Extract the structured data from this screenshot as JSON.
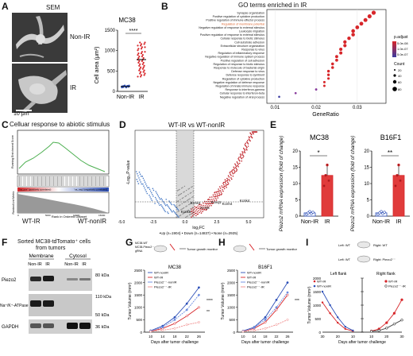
{
  "panels": {
    "A": "A",
    "B": "B",
    "C": "C",
    "D": "D",
    "E": "E",
    "F": "F",
    "G": "G",
    "H": "H",
    "I": "I"
  },
  "panelA": {
    "sem_title": "SEM",
    "label_nonir": "Non-IR",
    "label_ir": "IR",
    "scale_bar": "10 μm",
    "chart_data": {
      "type": "scatter",
      "title": "MC38",
      "ylabel": "Cell area (μm²)",
      "categories": [
        "Non-IR",
        "IR"
      ],
      "yticks": [
        "0",
        "500",
        "1000",
        "1500"
      ],
      "ylim": [
        0,
        1500
      ],
      "series": [
        {
          "values": [
            120,
            780
          ]
        }
      ],
      "significance": "****"
    }
  },
  "panelB": {
    "title": "GO terms enriched in IR",
    "xlabel": "GeneRatio",
    "xticks": [
      "0.01",
      "0.02",
      "0.03"
    ],
    "highlight_color": "#d9622b",
    "chart_data": {
      "type": "scatter",
      "terms": [
        "Synapse organization",
        "Positive regulation of cytokine production",
        "Positive regulation of immune effector process",
        "Regulation of membrane potential",
        "Negative regulation of response to external stimulus",
        "Leukocyte migration",
        "Positive regulation of response to external stimulus",
        "Cellular response to biotic stimulus",
        "Cell-substrate adhesion",
        "Extracellular structure organization",
        "Response to virus",
        "Regulation of inflammatory response",
        "Negative regulation of immune system process",
        "Positive regulation of cell adhesion",
        "Regulation of response to biotic stimulus",
        "Response to molecule of bacterial origin",
        "Defense response to virus",
        "Defense response to symbiont",
        "Regulation of cytokine production",
        "Negative regulation of defense response",
        "Regulation of innate immune response",
        "Response to interferon-gamma",
        "Cellular response to interferon-beta",
        "Negative regulation of viral process"
      ],
      "x": [
        0.034,
        0.033,
        0.032,
        0.031,
        0.03,
        0.029,
        0.029,
        0.028,
        0.027,
        0.027,
        0.026,
        0.026,
        0.025,
        0.025,
        0.024,
        0.024,
        0.023,
        0.023,
        0.023,
        0.022,
        0.022,
        0.02,
        0.015,
        0.011
      ],
      "xlim": [
        0.008,
        0.037
      ],
      "legend_padj_title": "p.adjust",
      "legend_padj": [
        "5.0e-08",
        "1.0e-07",
        "5.0e-07"
      ],
      "legend_count_title": "Count",
      "legend_count": [
        "20",
        "40",
        "60",
        "80"
      ]
    }
  },
  "panelC": {
    "title": "Celluar response to abiotic stimulus",
    "label_left": "WT-IR",
    "label_right": "WT-nonIR",
    "ylabel_top": "Running Enrichment Score",
    "ylabel_bottom": "Ranked List Metric",
    "xlabel": "Rank in Ordered Dataset",
    "pos_tag": "'na_pos' (positively correlated)",
    "neg_tag": "'na_neg' (negatively correlated)",
    "ticks": [
      "0",
      "5000",
      "10000",
      "15000"
    ]
  },
  "panelD": {
    "title": "WT-IR vs WT-nonIR",
    "ylabel": "-Log₁₀P-value",
    "xlabel": "log₂FC",
    "xticks": [
      "-5.0",
      "-2.5",
      "0.0",
      "2.5",
      "5.0"
    ],
    "genes": [
      "Kcnk2",
      "Kcnj8",
      "Kcnk6",
      "Kcnq1",
      "Kcnh4",
      "Kcnk4"
    ],
    "legend": "•Up (n=1904) • Down (n=14837) • None (n=2925)"
  },
  "panelE": {
    "chart_data": [
      {
        "type": "bar",
        "title": "MC38",
        "ylabel": "Piezo2 mRNA expression (fold of change)",
        "categories": [
          "Non-IR",
          "IR"
        ],
        "values": [
          1.0,
          12.5
        ],
        "yticks": [
          "0",
          "5",
          "10",
          "15",
          "20"
        ],
        "ylim": [
          0,
          20
        ],
        "significance": "*"
      },
      {
        "type": "bar",
        "title": "B16F1",
        "ylabel": "Piezo2 mRNA expression (fold of change)",
        "categories": [
          "Non-IR",
          "IR"
        ],
        "values": [
          1.0,
          12.5
        ],
        "yticks": [
          "0",
          "5",
          "10",
          "15",
          "20"
        ],
        "ylim": [
          0,
          20
        ],
        "significance": "**"
      }
    ]
  },
  "panelF": {
    "title_line1": "Sorted MC38-tdTomato⁺ cells",
    "title_line2": "from tumors",
    "membrane": "Membrane",
    "cytosol": "Cytosol",
    "lanes": [
      "Non-IR",
      "IR",
      "Non-IR",
      "IR"
    ],
    "rows": [
      "Piezo2",
      "Na⁺/K⁺-ATPase",
      "GAPDH"
    ],
    "markers": [
      "80 kDa",
      "110 kDa",
      "50 kDa",
      "36 kDa"
    ]
  },
  "panelG": {
    "title": "MC38",
    "monitor": "Tumor growth monitor",
    "schematic_lines": [
      "MC38-WT",
      "MC38-Piezo2⁻⁻",
      "gRNA"
    ],
    "ylabel": "Tumor Volume (mm³)",
    "xlabel": "Days after tumor challenge",
    "chart_data": {
      "type": "line",
      "x": [
        10,
        14,
        18,
        22,
        26
      ],
      "xticks": [
        "10",
        "14",
        "18",
        "22",
        "26"
      ],
      "yticks": [
        "0",
        "500",
        "1000",
        "1500",
        "2000",
        "2500"
      ],
      "ylim": [
        0,
        2500
      ],
      "series": [
        {
          "name": "WT-nonIR",
          "color": "#2c4fb8",
          "values": [
            60,
            250,
            600,
            1150,
            1800
          ]
        },
        {
          "name": "WT-IR",
          "color": "#d7262a",
          "values": [
            40,
            150,
            350,
            650,
            1000
          ]
        },
        {
          "name": "Piezo2⁻⁻-nonIR",
          "color": "#6b8be0",
          "values": [
            50,
            200,
            500,
            900,
            1500
          ]
        },
        {
          "name": "Piezo2⁻⁻-IR",
          "color": "#f08a8a",
          "values": [
            30,
            80,
            150,
            300,
            400
          ]
        }
      ],
      "significance": [
        "****",
        "**"
      ]
    }
  },
  "panelH": {
    "title": "B16F1",
    "monitor": "Tumor growth monitor",
    "ylabel": "Tumor Volume (mm³)",
    "xlabel": "Days after tumor challenge",
    "chart_data": {
      "type": "line",
      "x": [
        10,
        14,
        18,
        22,
        26
      ],
      "xticks": [
        "10",
        "14",
        "18",
        "22",
        "26"
      ],
      "yticks": [
        "0",
        "500",
        "1000",
        "1500",
        "2000",
        "2500"
      ],
      "ylim": [
        0,
        2500
      ],
      "series": [
        {
          "name": "WT-nonIR",
          "color": "#2c4fb8",
          "values": [
            50,
            200,
            600,
            1300,
            2000
          ]
        },
        {
          "name": "WT-IR",
          "color": "#d7262a",
          "values": [
            40,
            150,
            400,
            900,
            1500
          ]
        },
        {
          "name": "Piezo2⁻⁻-nonIR",
          "color": "#6b8be0",
          "values": [
            40,
            180,
            500,
            1000,
            1600
          ]
        },
        {
          "name": "Piezo2⁻⁻-IR",
          "color": "#f08a8a",
          "values": [
            30,
            70,
            150,
            300,
            500
          ]
        }
      ],
      "significance": [
        "***"
      ]
    }
  },
  "panelI": {
    "left_flank": "Left flank",
    "right_flank": "Right flank",
    "schematic_top": [
      "Left: WT",
      "Right: WT"
    ],
    "schematic_bottom": [
      "Left: WT",
      "Right: Piezo2⁻⁻"
    ],
    "ylabel": "Tumor Volume (mm³)",
    "xlabel": "Days after tumor challenge",
    "legend_left": [
      "WT-IR",
      "WT-nonIR"
    ],
    "legend_right": [
      "WT-IR",
      "Piezo2⁻⁻-IR"
    ],
    "chart_data": {
      "type": "line",
      "x_left": [
        30,
        25,
        20,
        15,
        10
      ],
      "x_right": [
        10,
        15,
        20,
        25,
        30
      ],
      "xticks": [
        "30",
        "20",
        "10",
        "10",
        "20",
        "30"
      ],
      "yticks": [
        "0",
        "500",
        "1000",
        "1500",
        "2000"
      ],
      "ylim": [
        0,
        2000
      ],
      "left": [
        {
          "name": "WT-IR",
          "color": "#d7262a",
          "values": [
            1100,
            700,
            350,
            120,
            40
          ]
        },
        {
          "name": "WT-nonIR",
          "color": "#2c4fb8",
          "values": [
            1500,
            1000,
            550,
            200,
            60
          ]
        }
      ],
      "right": [
        {
          "name": "WT-IR",
          "color": "#d7262a",
          "values": [
            40,
            120,
            350,
            700,
            1200
          ]
        },
        {
          "name": "Piezo2⁻⁻-IR",
          "color": "#444444",
          "values": [
            30,
            60,
            150,
            300,
            450
          ]
        }
      ]
    }
  }
}
